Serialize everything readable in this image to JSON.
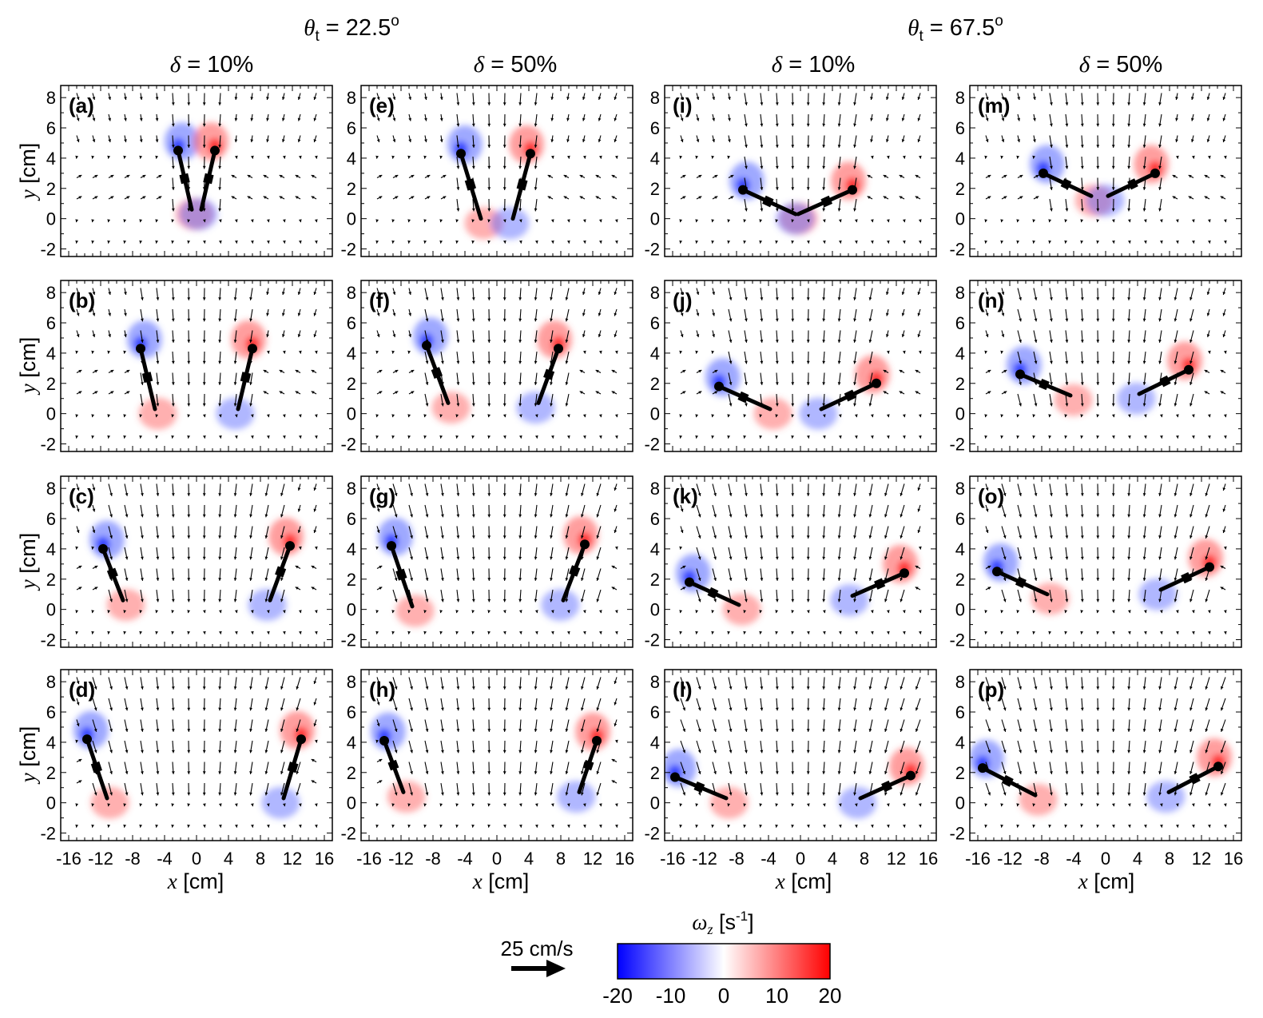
{
  "figure": {
    "groups": [
      {
        "theta_symbol": "θ",
        "theta_sub": "t",
        "theta_value": " = 22.5",
        "theta_sup": "o"
      },
      {
        "theta_symbol": "θ",
        "theta_sub": "t",
        "theta_value": " = 67.5",
        "theta_sup": "o"
      }
    ],
    "columns": [
      {
        "delta_symbol": "δ",
        "delta_value": " = 10%"
      },
      {
        "delta_symbol": "δ",
        "delta_value": " = 50%"
      },
      {
        "delta_symbol": "δ",
        "delta_value": " = 10%"
      },
      {
        "delta_symbol": "δ",
        "delta_value": " = 50%"
      }
    ],
    "y_axis_label": {
      "symbol": "y",
      "unit": " [cm]"
    },
    "x_axis_label": {
      "symbol": "x",
      "unit": " [cm]"
    },
    "y_ticks": [
      "-2",
      "0",
      "2",
      "4",
      "6",
      "8"
    ],
    "x_ticks": [
      "-16",
      "-12",
      "-8",
      "-4",
      "0",
      "4",
      "8",
      "12",
      "16"
    ],
    "panel_labels": [
      "(a)",
      "(b)",
      "(c)",
      "(d)",
      "(e)",
      "(f)",
      "(g)",
      "(h)",
      "(i)",
      "(j)",
      "(k)",
      "(l)",
      "(m)",
      "(n)",
      "(o)",
      "(p)"
    ],
    "colorbar": {
      "title_symbol": "ω",
      "title_sub": "z",
      "title_unit": " [s",
      "title_sup": "-1",
      "title_close": "]",
      "ticks": [
        "-20",
        "-10",
        "0",
        "10",
        "20"
      ],
      "colors": {
        "low": "#0000ff",
        "mid": "#ffffff",
        "high": "#ff0000"
      }
    },
    "reference_vector": {
      "label": "25 cm/s"
    }
  },
  "chart_data": {
    "type": "vector-field-heatmap",
    "quantity": "vorticity omega_z [s^-1]",
    "xlim": [
      -17,
      17
    ],
    "ylim": [
      -2.5,
      8.8
    ],
    "clim": [
      -20,
      20
    ],
    "panels": [
      {
        "label": "(a)",
        "theta_t": 22.5,
        "delta": 10,
        "pivots": [
          [
            -2.3,
            4.5
          ],
          [
            2.3,
            4.5
          ]
        ],
        "tips": [
          [
            -0.6,
            0.6
          ],
          [
            0.6,
            0.6
          ]
        ]
      },
      {
        "label": "(b)",
        "theta_t": 22.5,
        "delta": 10,
        "pivots": [
          [
            -7,
            4.3
          ],
          [
            7,
            4.3
          ]
        ],
        "tips": [
          [
            -5.2,
            0.3
          ],
          [
            5.2,
            0.3
          ]
        ]
      },
      {
        "label": "(c)",
        "theta_t": 22.5,
        "delta": 10,
        "pivots": [
          [
            -11.7,
            4.0
          ],
          [
            11.7,
            4.2
          ]
        ],
        "tips": [
          [
            -9.2,
            0.6
          ],
          [
            9.2,
            0.6
          ]
        ]
      },
      {
        "label": "(d)",
        "theta_t": 22.5,
        "delta": 10,
        "pivots": [
          [
            -13.7,
            4.2
          ],
          [
            13.1,
            4.2
          ]
        ],
        "tips": [
          [
            -11.2,
            0.3
          ],
          [
            10.9,
            0.3
          ]
        ]
      },
      {
        "label": "(e)",
        "theta_t": 22.5,
        "delta": 50,
        "pivots": [
          [
            -4.5,
            4.3
          ],
          [
            4.2,
            4.3
          ]
        ],
        "tips": [
          [
            -2.0,
            0.0
          ],
          [
            2.0,
            0.0
          ]
        ]
      },
      {
        "label": "(f)",
        "theta_t": 22.5,
        "delta": 50,
        "pivots": [
          [
            -8.8,
            4.5
          ],
          [
            7.7,
            4.3
          ]
        ],
        "tips": [
          [
            -6.1,
            0.7
          ],
          [
            5.2,
            0.7
          ]
        ]
      },
      {
        "label": "(g)",
        "theta_t": 22.5,
        "delta": 50,
        "pivots": [
          [
            -13.2,
            4.2
          ],
          [
            11.0,
            4.3
          ]
        ],
        "tips": [
          [
            -10.6,
            0.2
          ],
          [
            8.3,
            0.6
          ]
        ]
      },
      {
        "label": "(h)",
        "theta_t": 22.5,
        "delta": 50,
        "pivots": [
          [
            -14.1,
            4.1
          ],
          [
            12.5,
            4.1
          ]
        ],
        "tips": [
          [
            -11.7,
            0.7
          ],
          [
            10.3,
            0.7
          ]
        ]
      },
      {
        "label": "(i)",
        "theta_t": 67.5,
        "delta": 10,
        "pivots": [
          [
            -7.2,
            1.9
          ],
          [
            6.5,
            1.9
          ]
        ],
        "tips": [
          [
            -0.6,
            0.3
          ],
          [
            -0.3,
            0.3
          ]
        ]
      },
      {
        "label": "(j)",
        "theta_t": 67.5,
        "delta": 10,
        "pivots": [
          [
            -10.2,
            1.8
          ],
          [
            9.5,
            2.0
          ]
        ],
        "tips": [
          [
            -3.8,
            0.3
          ],
          [
            2.6,
            0.3
          ]
        ]
      },
      {
        "label": "(k)",
        "theta_t": 67.5,
        "delta": 10,
        "pivots": [
          [
            -13.9,
            1.8
          ],
          [
            13.0,
            2.4
          ]
        ],
        "tips": [
          [
            -7.7,
            0.3
          ],
          [
            6.5,
            0.9
          ]
        ]
      },
      {
        "label": "(l)",
        "theta_t": 67.5,
        "delta": 10,
        "pivots": [
          [
            -15.7,
            1.7
          ],
          [
            13.8,
            1.8
          ]
        ],
        "tips": [
          [
            -9.3,
            0.3
          ],
          [
            7.5,
            0.3
          ]
        ]
      },
      {
        "label": "(m)",
        "theta_t": 67.5,
        "delta": 50,
        "pivots": [
          [
            -7.8,
            3.0
          ],
          [
            6.2,
            3.0
          ]
        ],
        "tips": [
          [
            -1.8,
            1.5
          ],
          [
            0.3,
            1.5
          ]
        ]
      },
      {
        "label": "(n)",
        "theta_t": 67.5,
        "delta": 50,
        "pivots": [
          [
            -10.7,
            2.6
          ],
          [
            10.4,
            2.9
          ]
        ],
        "tips": [
          [
            -4.4,
            1.2
          ],
          [
            4.2,
            1.3
          ]
        ]
      },
      {
        "label": "(o)",
        "theta_t": 67.5,
        "delta": 50,
        "pivots": [
          [
            -13.6,
            2.5
          ],
          [
            13.0,
            2.8
          ]
        ],
        "tips": [
          [
            -7.3,
            1.0
          ],
          [
            6.9,
            1.3
          ]
        ]
      },
      {
        "label": "(p)",
        "theta_t": 67.5,
        "delta": 50,
        "pivots": [
          [
            -15.4,
            2.3
          ],
          [
            14.1,
            2.4
          ]
        ],
        "tips": [
          [
            -8.8,
            0.5
          ],
          [
            7.9,
            0.7
          ]
        ]
      }
    ]
  }
}
